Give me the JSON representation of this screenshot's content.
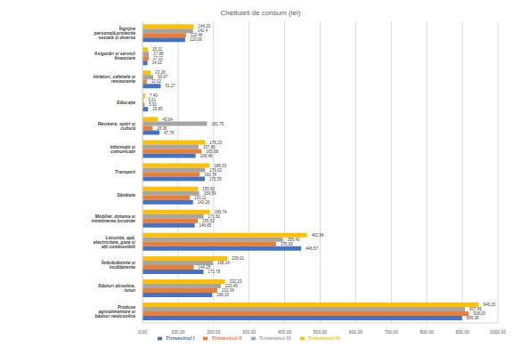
{
  "chart_data": {
    "type": "bar",
    "title": "Cheltuieli de consum (lei)",
    "orientation": "horizontal",
    "grid": true,
    "legend": "bottom",
    "data_labels": true,
    "categories": [
      "Îngrijire personală,protecție socială și diverse",
      "Asigurări și servicii financiare",
      "Hoteluri, cafenele și restaurante",
      "Educație",
      "Recreere, sport și cultură",
      "Informații și comunicații",
      "Transport",
      "Sănătate",
      "Mobilier, dotarea și întreținerea locuinței",
      "Locuința, apă, electricitate, gaze și alți combustibili",
      "Îmbrăcăminte și încălțăminte",
      "Băuturi alcoolice, tutun",
      "Produse agroalimentare și băuturi nealcoolice"
    ],
    "series": [
      {
        "name": "Trimestrul IV",
        "color": "#FFC000",
        "values": [
          144.2,
          15.21,
          23.28,
          7.49,
          43.64,
          176.23,
          188.33,
          155.82,
          189.74,
          462.84,
          239.01,
          232.23,
          946.23
        ],
        "value_labels": [
          "144,20",
          "15,21",
          "23,28",
          "7,49",
          "43,64",
          "176,23",
          "188,33",
          "155,82",
          "189,74",
          "462,84",
          "239,01",
          "232,23",
          "946,23"
        ]
      },
      {
        "name": "Trimestrul III",
        "color": "#A5A5A5",
        "values": [
          142.4,
          17.88,
          30.07,
          3.21,
          181.75,
          157.8,
          176.02,
          159.59,
          171.82,
          395.43,
          198.14,
          220.49,
          907.45
        ],
        "value_labels": [
          "142,4",
          "17,88",
          "30,07",
          "3,21",
          "181,75",
          "157,80",
          "176,02",
          "159,59",
          "171,82",
          "395,43",
          "198,14",
          "220,49",
          "907,45"
        ]
      },
      {
        "name": "Trimestrul II",
        "color": "#ED7D31",
        "values": [
          122.46,
          17.22,
          12.02,
          5.91,
          28.36,
          165.98,
          160.78,
          133.11,
          155.53,
          375.69,
          144.25,
          210.34,
          918.03
        ],
        "value_labels": [
          "122,46",
          "17,22",
          "12,02",
          "5,91",
          "28,36",
          "165,98",
          "160,78",
          "133,11",
          "155,53",
          "375,69",
          "144,25",
          "210,34",
          "918,03"
        ]
      },
      {
        "name": "Trimestrul I",
        "color": "#4472C4",
        "values": [
          120.06,
          14.15,
          51.27,
          15.85,
          47.78,
          149.48,
          175.55,
          142.26,
          146.85,
          446.57,
          171.78,
          196.33,
          899.38
        ],
        "value_labels": [
          "120,06",
          "14,15",
          "51,27",
          "15,85",
          "47,78",
          "149,48",
          "175,55",
          "142,26",
          "146,85",
          "446,57",
          "171,78",
          "196,33",
          "899,38"
        ]
      }
    ],
    "xlim": [
      0,
      1000
    ],
    "xticks": [
      {
        "value": 0,
        "label": "0,00"
      },
      {
        "value": 100,
        "label": "100,00"
      },
      {
        "value": 200,
        "label": "200,00"
      },
      {
        "value": 300,
        "label": "300,00"
      },
      {
        "value": 400,
        "label": "400,00"
      },
      {
        "value": 500,
        "label": "500,00"
      },
      {
        "value": 600,
        "label": "600,00"
      },
      {
        "value": 700,
        "label": "700,00"
      },
      {
        "value": 800,
        "label": "800,00"
      },
      {
        "value": 900,
        "label": "900,00"
      },
      {
        "value": 1000,
        "label": "1000,00"
      }
    ]
  }
}
